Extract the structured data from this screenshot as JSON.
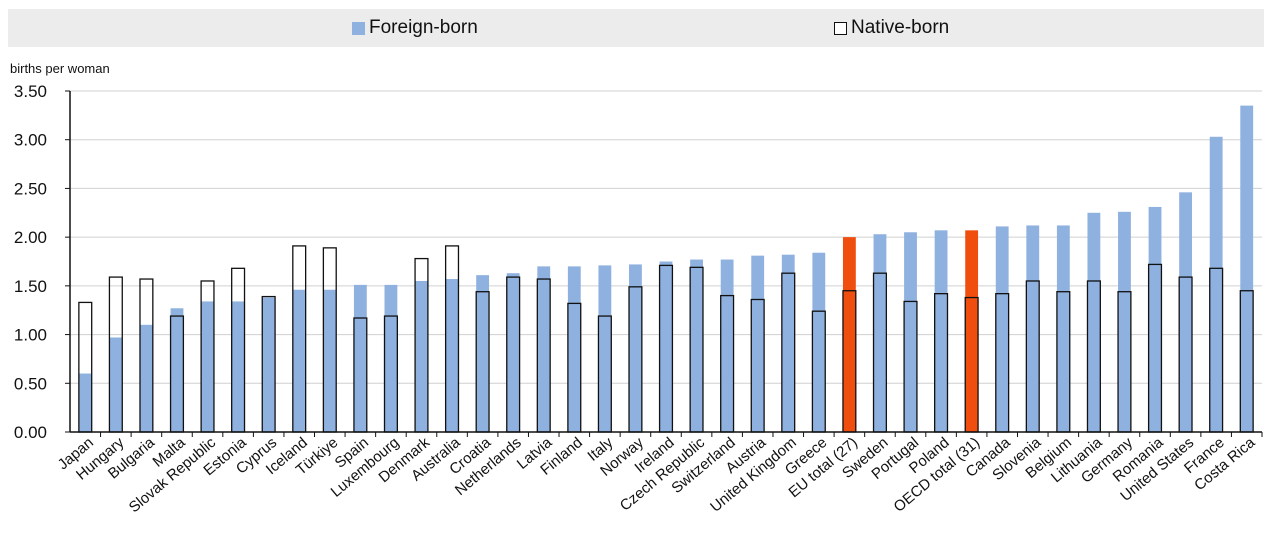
{
  "legend": {
    "foreign_label": "Foreign-born",
    "native_label": "Native-born"
  },
  "colors": {
    "foreign": "#8fb1df",
    "highlight": "#f04e0f",
    "native_outline": "#111111",
    "grid": "#d0d0d0"
  },
  "chart_data": {
    "type": "bar",
    "ylabel": "births per woman",
    "ylim": [
      0,
      3.5
    ],
    "yticks": [
      "0.00",
      "0.50",
      "1.00",
      "1.50",
      "2.00",
      "2.50",
      "3.00",
      "3.50"
    ],
    "grid": true,
    "legend_position": "top",
    "categories": [
      "Japan",
      "Hungary",
      "Bulgaria",
      "Malta",
      "Slovak Republic",
      "Estonia",
      "Cyprus",
      "Iceland",
      "Türkiye",
      "Spain",
      "Luxembourg",
      "Denmark",
      "Australia",
      "Croatia",
      "Netherlands",
      "Latvia",
      "Finland",
      "Italy",
      "Norway",
      "Ireland",
      "Czech Republic",
      "Switzerland",
      "Austria",
      "United Kingdom",
      "Greece",
      "EU total (27)",
      "Sweden",
      "Portugal",
      "Poland",
      "OECD total (31)",
      "Canada",
      "Slovenia",
      "Belgium",
      "Lithuania",
      "Germany",
      "Romania",
      "United States",
      "France",
      "Costa Rica"
    ],
    "highlighted": [
      "EU total (27)",
      "OECD total (31)"
    ],
    "series": [
      {
        "name": "Foreign-born",
        "values": [
          0.6,
          0.97,
          1.1,
          1.27,
          1.34,
          1.34,
          1.38,
          1.46,
          1.46,
          1.51,
          1.51,
          1.55,
          1.57,
          1.61,
          1.63,
          1.7,
          1.7,
          1.71,
          1.72,
          1.75,
          1.77,
          1.77,
          1.81,
          1.82,
          1.84,
          2.0,
          2.03,
          2.05,
          2.07,
          2.07,
          2.11,
          2.12,
          2.12,
          2.25,
          2.26,
          2.31,
          2.46,
          3.03,
          3.35
        ]
      },
      {
        "name": "Native-born",
        "values": [
          1.33,
          1.59,
          1.57,
          1.19,
          1.55,
          1.68,
          1.39,
          1.91,
          1.89,
          1.17,
          1.19,
          1.78,
          1.91,
          1.44,
          1.59,
          1.57,
          1.32,
          1.19,
          1.49,
          1.71,
          1.69,
          1.4,
          1.36,
          1.63,
          1.24,
          1.45,
          1.63,
          1.34,
          1.42,
          1.38,
          1.42,
          1.55,
          1.44,
          1.55,
          1.44,
          1.72,
          1.59,
          1.68,
          1.45
        ]
      }
    ]
  }
}
